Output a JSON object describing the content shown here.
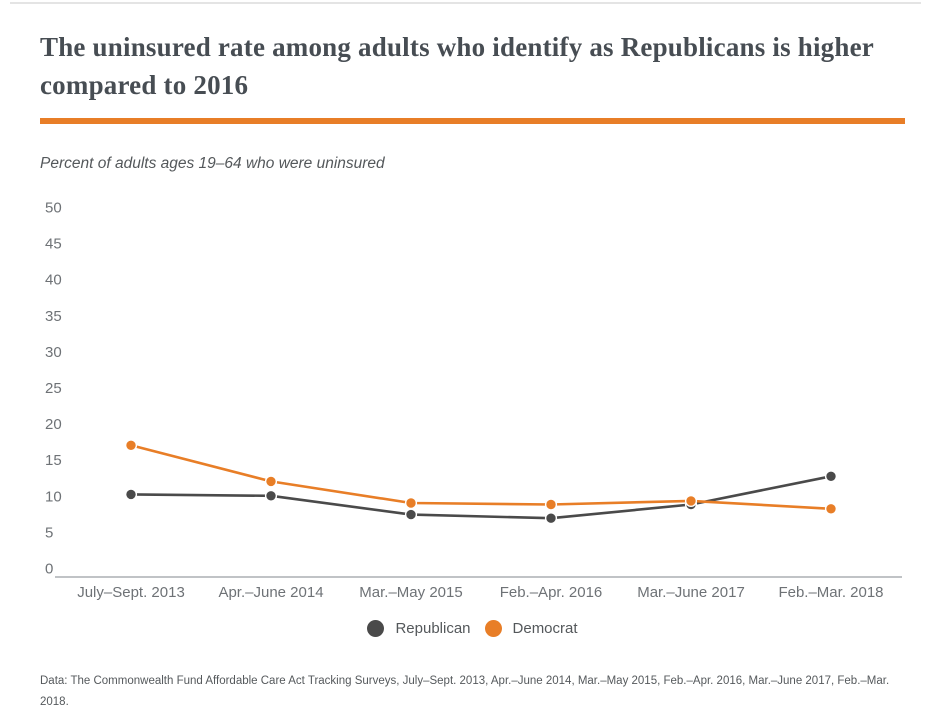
{
  "page": {
    "source_note": "Data: The Commonwealth Fund Affordable Care Act Tracking Surveys, July–Sept. 2013, Apr.–June 2014, Mar.–May 2015, Feb.–Apr. 2016, Mar.–June 2017, Feb.–Mar. 2018."
  },
  "colors": {
    "accent_orange": "#e87e27",
    "republican_gray": "#4a4a4a",
    "axis_text_gray": "#6e7276",
    "axis_line_gray": "#9b9fa3",
    "title_text": "#474d53"
  },
  "chart_data": {
    "type": "line",
    "title": "The uninsured rate among adults who identify as Republicans is higher compared to 2016",
    "subtitle": "Percent of adults ages 19–64 who were uninsured",
    "categories": [
      "July–Sept. 2013",
      "Apr.–June 2014",
      "Mar.–May 2015",
      "Feb.–Apr. 2016",
      "Mar.–June 2017",
      "Feb.–Mar. 2018"
    ],
    "series": [
      {
        "name": "Republican",
        "color": "#4a4a4a",
        "values": [
          10.2,
          10.0,
          7.4,
          6.9,
          8.8,
          12.7
        ]
      },
      {
        "name": "Democrat",
        "color": "#e87e27",
        "values": [
          17.0,
          12.0,
          9.0,
          8.8,
          9.3,
          8.2
        ]
      }
    ],
    "xlabel": "",
    "ylabel": "",
    "ylim": [
      0,
      50
    ],
    "yticks": [
      0,
      5,
      10,
      15,
      20,
      25,
      30,
      35,
      40,
      45,
      50
    ],
    "grid": false,
    "legend_position": "bottom"
  }
}
